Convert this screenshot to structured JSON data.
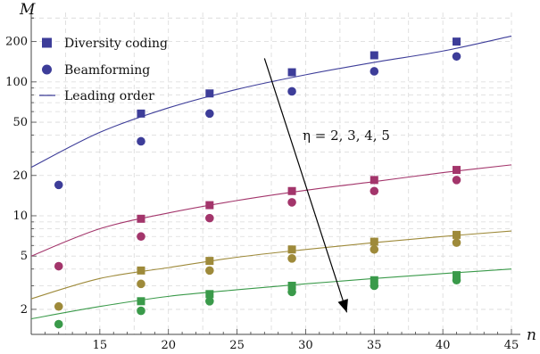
{
  "chart_data": {
    "type": "scatter",
    "title": "",
    "xlabel": "n",
    "ylabel": "M",
    "x_scale": "linear",
    "y_scale": "log",
    "xlim": [
      10,
      45
    ],
    "ylim": [
      1.3,
      330
    ],
    "x_ticks": [
      15,
      20,
      25,
      30,
      35,
      40,
      45
    ],
    "y_ticks": [
      2,
      5,
      10,
      20,
      50,
      100,
      200
    ],
    "grid": true,
    "legend_position": "top-left",
    "legend": [
      {
        "label": "Diversity coding",
        "marker": "square"
      },
      {
        "label": "Beamforming",
        "marker": "circle"
      },
      {
        "label": "Leading order",
        "marker": "line"
      }
    ],
    "annotation": {
      "text": "η = 2, 3, 4, 5",
      "arrow": {
        "from": [
          27,
          150
        ],
        "to": [
          33,
          1.9
        ]
      }
    },
    "x": [
      12,
      18,
      23,
      29,
      35,
      41
    ],
    "series": [
      {
        "eta": 2,
        "color": "#3d3d99",
        "diversity_coding": [
          null,
          58,
          82,
          118,
          158,
          200
        ],
        "beamforming": [
          17,
          36,
          58,
          85,
          120,
          155
        ],
        "leading_order": [
          [
            10,
            23
          ],
          [
            15,
            42
          ],
          [
            20,
            64
          ],
          [
            25,
            88
          ],
          [
            30,
            113
          ],
          [
            35,
            140
          ],
          [
            40,
            170
          ],
          [
            45,
            220
          ]
        ]
      },
      {
        "eta": 3,
        "color": "#a3356b",
        "diversity_coding": [
          null,
          9.5,
          12,
          15.3,
          18.5,
          22
        ],
        "beamforming": [
          4.2,
          7,
          9.6,
          12.6,
          15.3,
          18.5
        ],
        "leading_order": [
          [
            10,
            5
          ],
          [
            15,
            8
          ],
          [
            20,
            10.5
          ],
          [
            25,
            13
          ],
          [
            30,
            15.5
          ],
          [
            35,
            18
          ],
          [
            40,
            21
          ],
          [
            45,
            24
          ]
        ]
      },
      {
        "eta": 4,
        "color": "#9e8a3a",
        "diversity_coding": [
          null,
          3.9,
          4.6,
          5.6,
          6.4,
          7.2
        ],
        "beamforming": [
          2.1,
          3.1,
          3.9,
          4.8,
          5.6,
          6.3
        ],
        "leading_order": [
          [
            10,
            2.4
          ],
          [
            15,
            3.4
          ],
          [
            20,
            4.1
          ],
          [
            25,
            4.9
          ],
          [
            30,
            5.6
          ],
          [
            35,
            6.3
          ],
          [
            40,
            7
          ],
          [
            45,
            7.7
          ]
        ]
      },
      {
        "eta": 5,
        "color": "#3a9a4a",
        "diversity_coding": [
          null,
          2.3,
          2.6,
          3,
          3.3,
          3.6
        ],
        "beamforming": [
          1.55,
          1.95,
          2.3,
          2.7,
          3,
          3.3
        ],
        "leading_order": [
          [
            10,
            1.7
          ],
          [
            15,
            2.1
          ],
          [
            20,
            2.5
          ],
          [
            25,
            2.8
          ],
          [
            30,
            3.1
          ],
          [
            35,
            3.4
          ],
          [
            40,
            3.7
          ],
          [
            45,
            4
          ]
        ]
      }
    ]
  }
}
